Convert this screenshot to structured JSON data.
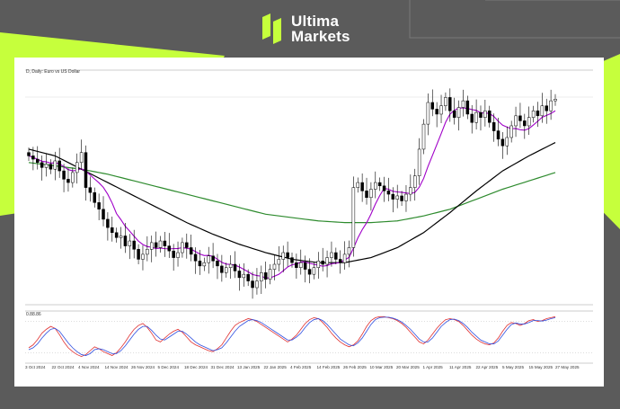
{
  "brand": {
    "line1": "Ultima",
    "line2": "Markets",
    "accent": "#c6ff3c"
  },
  "chart_data": [
    {
      "type": "candlestick",
      "title": "D, Daily: Euro vs US Dollar",
      "x_tick_labels": [
        "3 Oct 2024",
        "22 Oct 2024",
        "4 Nov 2024",
        "14 Nov 2024",
        "26 Nov 2024",
        "5 Dec 2024",
        "18 Dec 2024",
        "31 Dec 2024",
        "13 Jan 2025",
        "22 Jan 2025",
        "4 Feb 2025",
        "14 Feb 2025",
        "26 Feb 2025",
        "10 Mar 2025",
        "20 Mar 2025",
        "1 Apr 2025",
        "11 Apr 2025",
        "22 Apr 2025",
        "5 May 2025",
        "15 May 2025",
        "27 May 2025"
      ],
      "ohlc_close_approx": [
        1.104,
        1.102,
        1.1,
        1.097,
        1.099,
        1.096,
        1.101,
        1.095,
        1.09,
        1.088,
        1.094,
        1.1,
        1.106,
        1.085,
        1.082,
        1.076,
        1.072,
        1.066,
        1.061,
        1.058,
        1.055,
        1.056,
        1.05,
        1.053,
        1.048,
        1.042,
        1.045,
        1.048,
        1.052,
        1.049,
        1.053,
        1.05,
        1.047,
        1.043,
        1.046,
        1.052,
        1.049,
        1.045,
        1.041,
        1.038,
        1.04,
        1.044,
        1.041,
        1.038,
        1.034,
        1.037,
        1.039,
        1.035,
        1.031,
        1.033,
        1.029,
        1.025,
        1.029,
        1.034,
        1.03,
        1.036,
        1.039,
        1.042,
        1.046,
        1.043,
        1.04,
        1.037,
        1.04,
        1.036,
        1.033,
        1.037,
        1.041,
        1.039,
        1.043,
        1.046,
        1.042,
        1.04,
        1.045,
        1.049,
        1.085,
        1.088,
        1.083,
        1.079,
        1.084,
        1.088,
        1.086,
        1.083,
        1.081,
        1.078,
        1.08,
        1.077,
        1.081,
        1.085,
        1.092,
        1.108,
        1.123,
        1.136,
        1.132,
        1.129,
        1.134,
        1.139,
        1.131,
        1.127,
        1.133,
        1.137,
        1.129,
        1.124,
        1.13,
        1.127,
        1.131,
        1.124,
        1.119,
        1.114,
        1.11,
        1.115,
        1.122,
        1.128,
        1.125,
        1.122,
        1.127,
        1.131,
        1.128,
        1.134,
        1.131,
        1.137,
        1.138
      ],
      "moving_averages": [
        {
          "name": "MA fast",
          "color": "#a000c8"
        },
        {
          "name": "MA 100",
          "color": "#000000"
        },
        {
          "name": "MA 200",
          "color": "#2e8b2e"
        }
      ]
    },
    {
      "type": "line",
      "title": "0.88.86",
      "ylim": [
        0,
        100
      ],
      "series": [
        {
          "color": "#e03030",
          "values": [
            28,
            34,
            45,
            58,
            66,
            72,
            68,
            55,
            40,
            28,
            20,
            14,
            10,
            14,
            22,
            30,
            26,
            20,
            16,
            12,
            18,
            28,
            40,
            54,
            66,
            74,
            78,
            70,
            58,
            44,
            40,
            48,
            56,
            62,
            66,
            60,
            50,
            40,
            34,
            30,
            26,
            22,
            20,
            26,
            34,
            48,
            62,
            74,
            80,
            84,
            88,
            86,
            82,
            76,
            70,
            64,
            58,
            52,
            46,
            40,
            46,
            54,
            66,
            78,
            86,
            90,
            88,
            80,
            70,
            58,
            48,
            40,
            34,
            30,
            34,
            42,
            56,
            72,
            84,
            90,
            92,
            92,
            90,
            88,
            84,
            78,
            70,
            60,
            50,
            40,
            36,
            44,
            56,
            68,
            78,
            86,
            88,
            86,
            82,
            74,
            64,
            54,
            46,
            40,
            36,
            34,
            38,
            48,
            62,
            74,
            80,
            78,
            74,
            78,
            84,
            86,
            82,
            84,
            88,
            90,
            92
          ]
        },
        {
          "color": "#3050e0",
          "values": [
            24,
            28,
            36,
            48,
            58,
            66,
            68,
            62,
            50,
            38,
            28,
            20,
            14,
            12,
            16,
            24,
            26,
            24,
            20,
            16,
            16,
            22,
            32,
            44,
            56,
            66,
            72,
            72,
            64,
            54,
            46,
            44,
            50,
            56,
            62,
            62,
            56,
            48,
            40,
            34,
            30,
            26,
            22,
            24,
            28,
            38,
            50,
            62,
            72,
            78,
            84,
            86,
            84,
            80,
            74,
            68,
            62,
            56,
            50,
            44,
            44,
            50,
            58,
            70,
            80,
            86,
            88,
            84,
            76,
            66,
            56,
            46,
            40,
            34,
            32,
            38,
            48,
            62,
            76,
            86,
            90,
            91,
            91,
            89,
            86,
            81,
            74,
            66,
            56,
            46,
            40,
            40,
            48,
            60,
            72,
            80,
            86,
            87,
            84,
            78,
            70,
            60,
            52,
            44,
            40,
            36,
            36,
            42,
            54,
            66,
            76,
            79,
            77,
            77,
            80,
            84,
            84,
            83,
            85,
            88,
            90
          ]
        }
      ]
    }
  ]
}
